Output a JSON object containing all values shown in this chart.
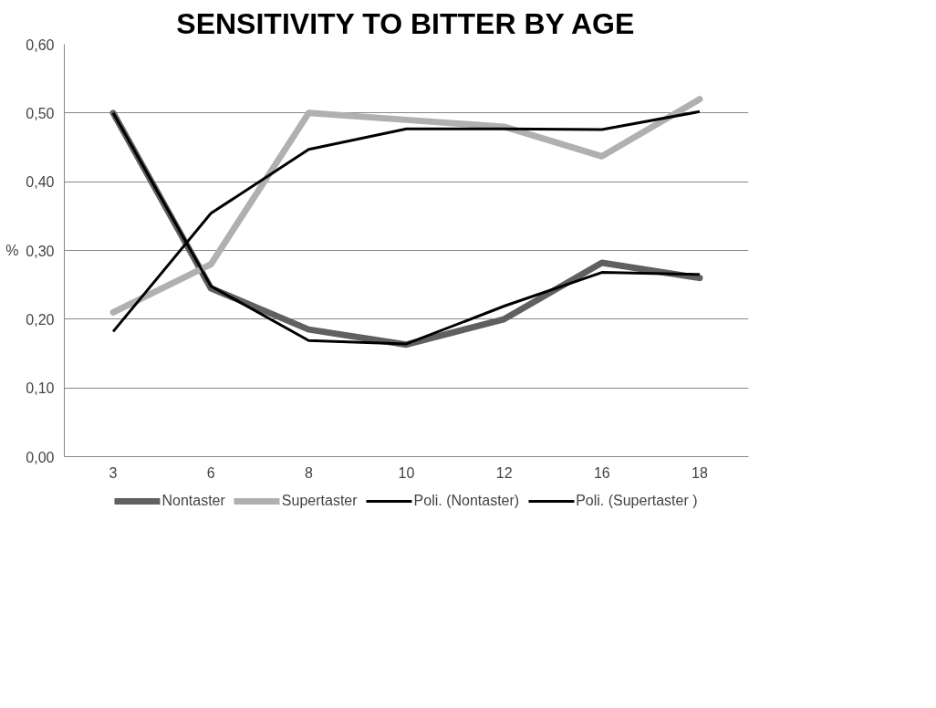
{
  "chart_data": {
    "type": "line",
    "title": "SENSITIVITY TO BITTER BY AGE",
    "ylabel": "%",
    "categories": [
      "3",
      "6",
      "8",
      "10",
      "12",
      "16",
      "18"
    ],
    "series": [
      {
        "name": "Nontaster",
        "color": "#606060",
        "values": [
          0.5,
          0.245,
          0.185,
          0.163,
          0.2,
          0.282,
          0.26
        ]
      },
      {
        "name": "Supertaster",
        "color": "#b0b0b0",
        "values": [
          0.21,
          0.28,
          0.5,
          0.49,
          0.48,
          0.437,
          0.52
        ]
      },
      {
        "name": "Poli. (Nontaster)",
        "color": "#000000",
        "x": [
          "3",
          "6",
          "8",
          "10",
          "12",
          "16",
          "18"
        ],
        "values": [
          0.5,
          0.248,
          0.169,
          0.164,
          0.219,
          0.268,
          0.265
        ]
      },
      {
        "name": "Poli. (Supertaster )",
        "color": "#000000",
        "x": [
          "3",
          "6",
          "8",
          "10",
          "12",
          "16",
          "18"
        ],
        "values": [
          0.182,
          0.354,
          0.447,
          0.477,
          0.477,
          0.476,
          0.502
        ]
      }
    ],
    "ylim": [
      0,
      0.6
    ],
    "yticks": [
      {
        "value": 0,
        "label": "0,00"
      },
      {
        "value": 0.1,
        "label": "0,10"
      },
      {
        "value": 0.2,
        "label": "0,20"
      },
      {
        "value": 0.3,
        "label": "0,30"
      },
      {
        "value": 0.4,
        "label": "0,40"
      },
      {
        "value": 0.5,
        "label": "0,50"
      },
      {
        "value": 0.6,
        "label": "0,60"
      }
    ],
    "grid": "y",
    "legend": "bottom",
    "marker": "none",
    "line_style": "solid"
  }
}
